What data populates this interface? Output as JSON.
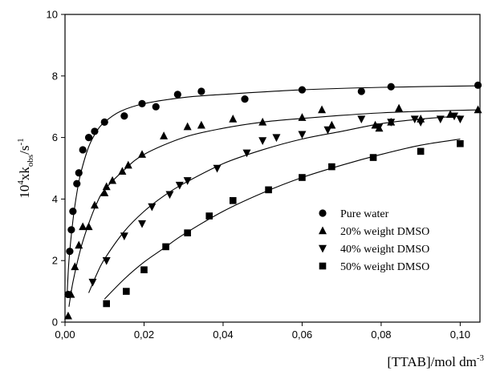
{
  "chart_data": {
    "type": "scatter",
    "xlabel": {
      "base": "[TTAB]/mol dm",
      "sup": "-3"
    },
    "ylabel": {
      "pre": "10",
      "sup1": "4",
      "mid": "xk",
      "sub": "obs",
      "post": "/s",
      "sup2": "-1"
    },
    "xlim": [
      0,
      0.105
    ],
    "ylim": [
      0,
      10
    ],
    "x_ticks": [
      0,
      0.02,
      0.04,
      0.06,
      0.08,
      0.1
    ],
    "x_tick_labels": [
      "0,00",
      "0,02",
      "0,04",
      "0,06",
      "0,08",
      "0,10"
    ],
    "y_ticks": [
      0,
      2,
      4,
      6,
      8,
      10
    ],
    "y_tick_labels": [
      "0",
      "2",
      "4",
      "6",
      "8",
      "10"
    ],
    "grid": false,
    "legend_position": "lower-right",
    "series": [
      {
        "name": "Pure water",
        "marker": "circle",
        "points": [
          [
            0.0008,
            0.9
          ],
          [
            0.0012,
            2.3
          ],
          [
            0.0016,
            3.0
          ],
          [
            0.002,
            3.6
          ],
          [
            0.003,
            4.5
          ],
          [
            0.0035,
            4.85
          ],
          [
            0.0045,
            5.6
          ],
          [
            0.006,
            6.0
          ],
          [
            0.0075,
            6.2
          ],
          [
            0.01,
            6.5
          ],
          [
            0.015,
            6.7
          ],
          [
            0.0195,
            7.1
          ],
          [
            0.023,
            7.0
          ],
          [
            0.0285,
            7.4
          ],
          [
            0.0345,
            7.5
          ],
          [
            0.0455,
            7.25
          ],
          [
            0.06,
            7.55
          ],
          [
            0.075,
            7.5
          ],
          [
            0.0825,
            7.65
          ],
          [
            0.1045,
            7.7
          ]
        ],
        "curve": [
          [
            0.0005,
            0.8
          ],
          [
            0.001,
            2.0
          ],
          [
            0.002,
            3.3
          ],
          [
            0.003,
            4.2
          ],
          [
            0.004,
            4.85
          ],
          [
            0.006,
            5.7
          ],
          [
            0.008,
            6.2
          ],
          [
            0.01,
            6.5
          ],
          [
            0.014,
            6.85
          ],
          [
            0.02,
            7.1
          ],
          [
            0.03,
            7.3
          ],
          [
            0.04,
            7.4
          ],
          [
            0.06,
            7.55
          ],
          [
            0.08,
            7.63
          ],
          [
            0.105,
            7.68
          ]
        ]
      },
      {
        "name": "20% weight DMSO",
        "marker": "triangle-up",
        "points": [
          [
            0.0008,
            0.2
          ],
          [
            0.0015,
            0.9
          ],
          [
            0.0025,
            1.8
          ],
          [
            0.0035,
            2.5
          ],
          [
            0.0045,
            3.1
          ],
          [
            0.006,
            3.1
          ],
          [
            0.0075,
            3.8
          ],
          [
            0.01,
            4.2
          ],
          [
            0.0105,
            4.4
          ],
          [
            0.012,
            4.6
          ],
          [
            0.0145,
            4.9
          ],
          [
            0.016,
            5.1
          ],
          [
            0.0195,
            5.45
          ],
          [
            0.025,
            6.05
          ],
          [
            0.031,
            6.35
          ],
          [
            0.0345,
            6.4
          ],
          [
            0.0425,
            6.6
          ],
          [
            0.05,
            6.5
          ],
          [
            0.06,
            6.65
          ],
          [
            0.065,
            6.9
          ],
          [
            0.0675,
            6.4
          ],
          [
            0.0785,
            6.4
          ],
          [
            0.0795,
            6.3
          ],
          [
            0.0825,
            6.5
          ],
          [
            0.0845,
            6.95
          ],
          [
            0.09,
            6.6
          ],
          [
            0.0975,
            6.75
          ],
          [
            0.1045,
            6.9
          ]
        ],
        "curve": [
          [
            0.001,
            0.5
          ],
          [
            0.002,
            1.3
          ],
          [
            0.004,
            2.4
          ],
          [
            0.006,
            3.2
          ],
          [
            0.008,
            3.85
          ],
          [
            0.01,
            4.3
          ],
          [
            0.015,
            4.95
          ],
          [
            0.02,
            5.45
          ],
          [
            0.03,
            6.0
          ],
          [
            0.04,
            6.3
          ],
          [
            0.05,
            6.5
          ],
          [
            0.06,
            6.62
          ],
          [
            0.07,
            6.72
          ],
          [
            0.08,
            6.8
          ],
          [
            0.09,
            6.85
          ],
          [
            0.105,
            6.9
          ]
        ]
      },
      {
        "name": "40% weight DMSO",
        "marker": "triangle-down",
        "points": [
          [
            0.007,
            1.3
          ],
          [
            0.0105,
            2.0
          ],
          [
            0.015,
            2.8
          ],
          [
            0.0195,
            3.2
          ],
          [
            0.022,
            3.75
          ],
          [
            0.0265,
            4.15
          ],
          [
            0.029,
            4.45
          ],
          [
            0.031,
            4.6
          ],
          [
            0.0385,
            5.0
          ],
          [
            0.046,
            5.5
          ],
          [
            0.05,
            5.9
          ],
          [
            0.0535,
            6.0
          ],
          [
            0.06,
            6.1
          ],
          [
            0.0665,
            6.25
          ],
          [
            0.075,
            6.6
          ],
          [
            0.0795,
            6.35
          ],
          [
            0.0825,
            6.5
          ],
          [
            0.0885,
            6.6
          ],
          [
            0.09,
            6.5
          ],
          [
            0.095,
            6.6
          ],
          [
            0.0985,
            6.7
          ],
          [
            0.1,
            6.6
          ]
        ],
        "curve": [
          [
            0.006,
            0.95
          ],
          [
            0.008,
            1.55
          ],
          [
            0.01,
            2.05
          ],
          [
            0.015,
            2.95
          ],
          [
            0.02,
            3.6
          ],
          [
            0.025,
            4.1
          ],
          [
            0.03,
            4.5
          ],
          [
            0.04,
            5.15
          ],
          [
            0.05,
            5.6
          ],
          [
            0.06,
            5.95
          ],
          [
            0.07,
            6.2
          ],
          [
            0.08,
            6.45
          ],
          [
            0.09,
            6.6
          ],
          [
            0.1,
            6.7
          ]
        ]
      },
      {
        "name": "50% weight DMSO",
        "marker": "square",
        "points": [
          [
            0.0105,
            0.6
          ],
          [
            0.0155,
            1.0
          ],
          [
            0.02,
            1.7
          ],
          [
            0.0255,
            2.45
          ],
          [
            0.031,
            2.9
          ],
          [
            0.0365,
            3.45
          ],
          [
            0.0425,
            3.95
          ],
          [
            0.0515,
            4.3
          ],
          [
            0.06,
            4.7
          ],
          [
            0.0675,
            5.05
          ],
          [
            0.078,
            5.35
          ],
          [
            0.09,
            5.55
          ],
          [
            0.1,
            5.8
          ]
        ],
        "curve": [
          [
            0.01,
            0.75
          ],
          [
            0.015,
            1.4
          ],
          [
            0.02,
            1.95
          ],
          [
            0.025,
            2.4
          ],
          [
            0.03,
            2.85
          ],
          [
            0.04,
            3.6
          ],
          [
            0.05,
            4.2
          ],
          [
            0.06,
            4.7
          ],
          [
            0.07,
            5.1
          ],
          [
            0.08,
            5.45
          ],
          [
            0.09,
            5.75
          ],
          [
            0.1,
            5.95
          ]
        ]
      }
    ]
  }
}
